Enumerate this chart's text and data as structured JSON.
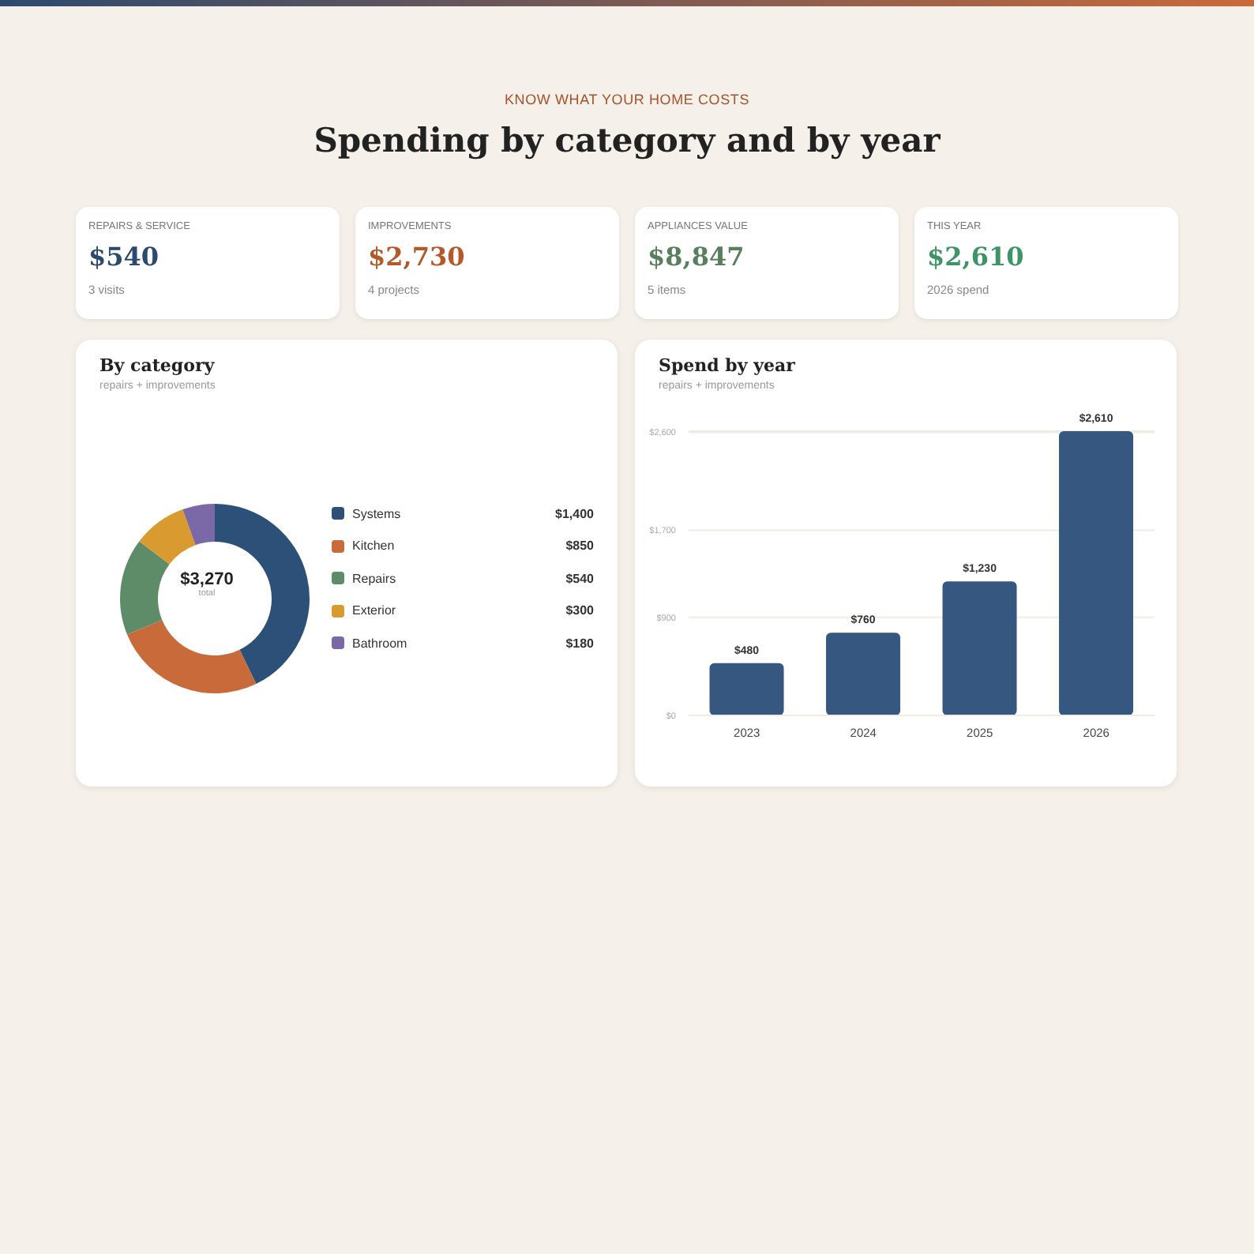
{
  "chart_data": [
    {
      "type": "other",
      "subtitle": "KNOW WHAT YOUR HOME COSTS",
      "title": "Spending by category and by year"
    },
    {
      "type": "other",
      "title": "REPAIRS & SERVICE",
      "annotations": [
        "$540",
        "3 visits"
      ]
    },
    {
      "type": "other",
      "title": "IMPROVEMENTS",
      "annotations": [
        "$2,730",
        "4 projects"
      ]
    },
    {
      "type": "other",
      "title": "APPLIANCES VALUE",
      "annotations": [
        "$8,847",
        "5 items"
      ]
    },
    {
      "type": "other",
      "title": "THIS YEAR",
      "annotations": [
        "$2,610",
        "2026 spend"
      ]
    },
    {
      "type": "donut",
      "title": "By category",
      "subtitle": "repairs + improvements",
      "categories": [
        "Systems",
        "Kitchen",
        "Repairs",
        "Exterior",
        "Bathroom"
      ],
      "values": [
        1400,
        850,
        540,
        300,
        180
      ],
      "colors": [
        "#2c5078",
        "#c96a3a",
        "#5f8c68",
        "#d99a30",
        "#7b68a6"
      ],
      "value_labels": [
        "$1,400",
        "$850",
        "$540",
        "$300",
        "$180"
      ],
      "legend": "right",
      "annotations": [
        "$3,270",
        "total"
      ]
    },
    {
      "type": "bar",
      "title": "Spend by year",
      "subtitle": "repairs + improvements",
      "categories": [
        "2023",
        "2024",
        "2025",
        "2026"
      ],
      "values": [
        480,
        760,
        1230,
        2610
      ],
      "color": "#36577f",
      "value_labels": [
        "$480",
        "$760",
        "$1,230",
        "$2,610"
      ],
      "ylim": [
        0,
        2610
      ],
      "yticks": [
        {
          "value": 0,
          "label": "$0"
        },
        {
          "value": 900,
          "label": "$900"
        },
        {
          "value": 1700,
          "label": "$1,700"
        },
        {
          "value": 2600,
          "label": "$2,600"
        }
      ],
      "grid": "y"
    }
  ]
}
